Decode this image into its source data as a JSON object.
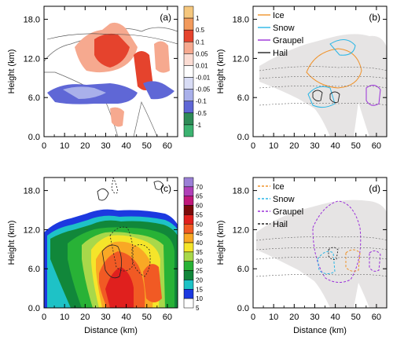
{
  "chart_data": [
    {
      "panel": "(a)",
      "type": "heatmap",
      "xlabel": "",
      "ylabel": "Height (km)",
      "xlim": [
        0,
        65
      ],
      "ylim": [
        0,
        20
      ],
      "xticks": [
        "0",
        "10",
        "20",
        "30",
        "40",
        "50",
        "60"
      ],
      "yticks": [
        "0.0",
        "6.0",
        "12.0",
        "18.0"
      ],
      "colorbar": {
        "labels": [
          "1",
          "0.5",
          "0.1",
          "0.05",
          "0.01",
          "-0.01",
          "-0.05",
          "-0.1",
          "-0.5",
          "-1"
        ],
        "colors": [
          "#f5c77e",
          "#f29a5c",
          "#e5432d",
          "#f6a98f",
          "#fbdcd3",
          "#ffffff",
          "#d8dcf5",
          "#a9b0ea",
          "#5f67d6",
          "#2e8b57",
          "#3cb371"
        ]
      }
    },
    {
      "panel": "(b)",
      "type": "contour",
      "xlabel": "",
      "ylabel": "Height (km)",
      "xlim": [
        0,
        65
      ],
      "ylim": [
        0,
        20
      ],
      "xticks": [
        "0",
        "10",
        "20",
        "30",
        "40",
        "50",
        "60"
      ],
      "yticks": [
        "0.0",
        "6.0",
        "12.0",
        "18.0"
      ],
      "legend": [
        {
          "name": "Ice",
          "color": "#f0932b",
          "dash": "solid"
        },
        {
          "name": "Snow",
          "color": "#29b6e6",
          "dash": "solid"
        },
        {
          "name": "Graupel",
          "color": "#9b30d9",
          "dash": "solid"
        },
        {
          "name": "Hail",
          "color": "#222222",
          "dash": "solid"
        }
      ],
      "legend_position": "top-left"
    },
    {
      "panel": "(c)",
      "type": "heatmap",
      "xlabel": "Distance (km)",
      "ylabel": "Height (km)",
      "xlim": [
        0,
        65
      ],
      "ylim": [
        0,
        20
      ],
      "xticks": [
        "0",
        "10",
        "20",
        "30",
        "40",
        "50",
        "60"
      ],
      "yticks": [
        "0.0",
        "6.0",
        "12.0",
        "18.0"
      ],
      "colorbar": {
        "labels": [
          "70",
          "65",
          "60",
          "55",
          "50",
          "45",
          "40",
          "35",
          "30",
          "25",
          "20",
          "15",
          "10",
          "5"
        ],
        "colors": [
          "#9b80d6",
          "#b040b8",
          "#c0187a",
          "#7a0a0a",
          "#e0201e",
          "#f15a24",
          "#f9a825",
          "#f5e52a",
          "#a8d84a",
          "#28b236",
          "#11873a",
          "#1ec2c6",
          "#1c39e0",
          "#ffffff"
        ]
      }
    },
    {
      "panel": "(d)",
      "type": "contour",
      "xlabel": "Distance (km)",
      "ylabel": "Height (km)",
      "xlim": [
        0,
        65
      ],
      "ylim": [
        0,
        20
      ],
      "xticks": [
        "0",
        "10",
        "20",
        "30",
        "40",
        "50",
        "60"
      ],
      "yticks": [
        "0.0",
        "6.0",
        "12.0",
        "18.0"
      ],
      "legend": [
        {
          "name": "Ice",
          "color": "#f0932b",
          "dash": "dashed"
        },
        {
          "name": "Snow",
          "color": "#29b6e6",
          "dash": "dashed"
        },
        {
          "name": "Graupel",
          "color": "#9b30d9",
          "dash": "dashed"
        },
        {
          "name": "Hail",
          "color": "#222222",
          "dash": "dashed"
        }
      ],
      "legend_position": "top-left"
    }
  ]
}
